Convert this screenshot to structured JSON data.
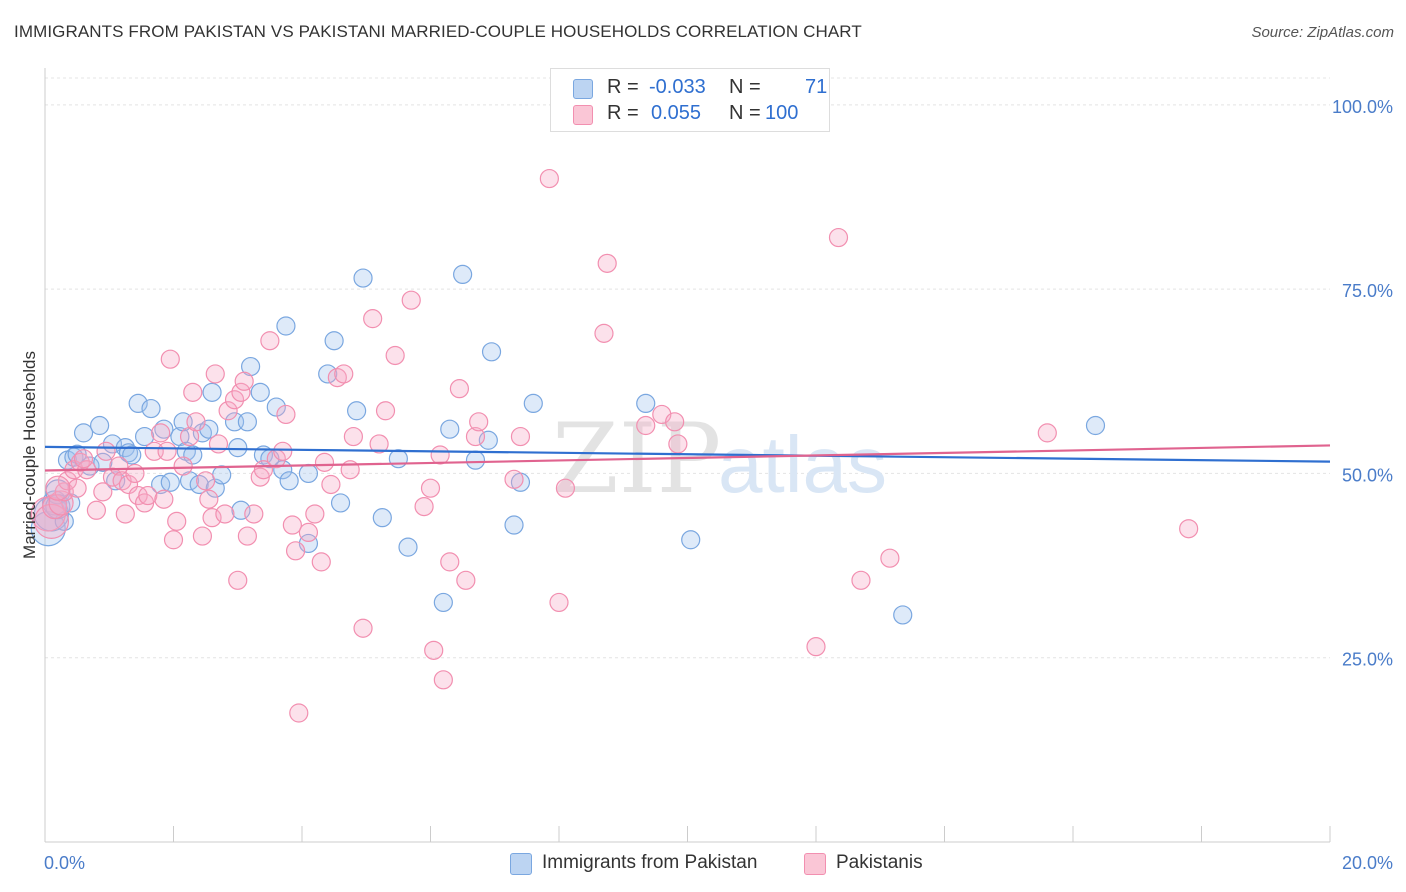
{
  "header": {
    "title": "IMMIGRANTS FROM PAKISTAN VS PAKISTANI MARRIED-COUPLE HOUSEHOLDS CORRELATION CHART",
    "source": "Source: ZipAtlas.com"
  },
  "watermark": {
    "zip": "ZIP",
    "atlas": "atlas"
  },
  "legend": {
    "rows": [
      {
        "r_label": "R =",
        "r_value": "-0.033",
        "n_label": "N =",
        "n_value": "71"
      },
      {
        "r_label": "R =",
        "r_value": "0.055",
        "n_label": "N =",
        "n_value": "100"
      }
    ]
  },
  "chart_data": {
    "type": "scatter",
    "title": "IMMIGRANTS FROM PAKISTAN VS PAKISTANI MARRIED-COUPLE HOUSEHOLDS CORRELATION CHART",
    "xlabel": "",
    "ylabel": "Married-couple Households",
    "xlim": [
      0,
      20
    ],
    "ylim": [
      0,
      105
    ],
    "x_tick_labels": [
      "0.0%",
      "20.0%"
    ],
    "y_ticks": [
      25,
      50,
      75,
      100
    ],
    "y_tick_labels": [
      "25.0%",
      "50.0%",
      "75.0%",
      "100.0%"
    ],
    "grid": true,
    "legend_position": "top-center",
    "series": [
      {
        "name": "Immigrants from Pakistan",
        "color": "#7aa7e0",
        "trend": {
          "x": [
            0,
            20
          ],
          "y": [
            53.6,
            51.6
          ]
        },
        "points": [
          [
            0.05,
            42.5
          ],
          [
            0.1,
            44.5
          ],
          [
            0.15,
            46
          ],
          [
            0.2,
            47.5
          ],
          [
            0.3,
            43.5
          ],
          [
            0.35,
            51.8
          ],
          [
            0.45,
            52.2
          ],
          [
            0.5,
            52.6
          ],
          [
            0.6,
            55.5
          ],
          [
            0.7,
            51
          ],
          [
            0.85,
            56.5
          ],
          [
            0.9,
            51.5
          ],
          [
            1.05,
            54
          ],
          [
            1.1,
            49
          ],
          [
            1.25,
            53.5
          ],
          [
            1.3,
            52.8
          ],
          [
            1.45,
            59.5
          ],
          [
            1.55,
            55
          ],
          [
            1.65,
            58.8
          ],
          [
            1.8,
            48.5
          ],
          [
            1.85,
            56
          ],
          [
            1.95,
            48.8
          ],
          [
            2.1,
            55
          ],
          [
            2.15,
            57
          ],
          [
            2.2,
            53
          ],
          [
            2.25,
            49
          ],
          [
            2.4,
            48.5
          ],
          [
            2.45,
            55.5
          ],
          [
            2.55,
            56
          ],
          [
            2.6,
            61
          ],
          [
            2.65,
            48
          ],
          [
            2.75,
            49.8
          ],
          [
            2.95,
            57
          ],
          [
            3.0,
            53.5
          ],
          [
            3.05,
            45
          ],
          [
            3.15,
            57
          ],
          [
            3.2,
            64.5
          ],
          [
            3.35,
            61
          ],
          [
            3.4,
            52.5
          ],
          [
            3.5,
            52
          ],
          [
            3.6,
            59
          ],
          [
            3.7,
            50.5
          ],
          [
            3.75,
            70
          ],
          [
            3.8,
            49
          ],
          [
            4.1,
            50
          ],
          [
            4.1,
            40.5
          ],
          [
            4.4,
            63.5
          ],
          [
            4.5,
            68
          ],
          [
            4.6,
            46
          ],
          [
            4.85,
            58.5
          ],
          [
            4.95,
            76.5
          ],
          [
            5.25,
            44
          ],
          [
            5.5,
            52
          ],
          [
            5.65,
            40
          ],
          [
            6.2,
            32.5
          ],
          [
            6.3,
            56
          ],
          [
            6.5,
            77
          ],
          [
            6.7,
            51.8
          ],
          [
            6.9,
            54.5
          ],
          [
            6.95,
            66.5
          ],
          [
            7.3,
            43
          ],
          [
            7.4,
            48.8
          ],
          [
            7.6,
            59.5
          ],
          [
            9.35,
            59.5
          ],
          [
            10.05,
            41
          ],
          [
            13.35,
            30.8
          ],
          [
            16.35,
            56.5
          ],
          [
            0.2,
            45.5
          ],
          [
            0.4,
            46
          ],
          [
            1.35,
            52.5
          ],
          [
            2.3,
            52.5
          ]
        ]
      },
      {
        "name": "Pakistanis",
        "color": "#f28fb0",
        "trend": {
          "x": [
            0,
            20
          ],
          "y": [
            50.4,
            53.8
          ]
        },
        "points": [
          [
            0.05,
            44.5
          ],
          [
            0.1,
            43.5
          ],
          [
            0.15,
            45.5
          ],
          [
            0.25,
            46
          ],
          [
            0.3,
            47.5
          ],
          [
            0.35,
            49
          ],
          [
            0.45,
            50.5
          ],
          [
            0.5,
            48
          ],
          [
            0.55,
            51.5
          ],
          [
            0.65,
            50.5
          ],
          [
            0.8,
            45
          ],
          [
            0.9,
            47.5
          ],
          [
            0.95,
            53
          ],
          [
            1.05,
            49.5
          ],
          [
            1.15,
            51
          ],
          [
            1.2,
            49
          ],
          [
            1.3,
            48.5
          ],
          [
            1.4,
            50
          ],
          [
            1.45,
            47
          ],
          [
            1.55,
            46
          ],
          [
            1.6,
            47
          ],
          [
            1.7,
            53
          ],
          [
            1.8,
            55.5
          ],
          [
            1.85,
            46.5
          ],
          [
            1.9,
            53
          ],
          [
            1.95,
            65.5
          ],
          [
            2.0,
            41
          ],
          [
            2.05,
            43.5
          ],
          [
            2.15,
            51
          ],
          [
            2.25,
            55
          ],
          [
            2.3,
            61
          ],
          [
            2.35,
            57
          ],
          [
            2.45,
            41.5
          ],
          [
            2.5,
            49
          ],
          [
            2.6,
            44
          ],
          [
            2.65,
            63.5
          ],
          [
            2.7,
            54
          ],
          [
            2.8,
            44.5
          ],
          [
            2.85,
            58.5
          ],
          [
            2.95,
            60
          ],
          [
            3.0,
            35.5
          ],
          [
            3.05,
            61
          ],
          [
            3.1,
            62.5
          ],
          [
            3.15,
            41.5
          ],
          [
            3.25,
            44.5
          ],
          [
            3.35,
            49.5
          ],
          [
            3.4,
            50.5
          ],
          [
            3.5,
            68
          ],
          [
            3.6,
            52
          ],
          [
            3.7,
            53
          ],
          [
            3.75,
            58
          ],
          [
            3.85,
            43
          ],
          [
            3.9,
            39.5
          ],
          [
            3.95,
            17.5
          ],
          [
            4.1,
            42
          ],
          [
            4.2,
            44.5
          ],
          [
            4.3,
            38
          ],
          [
            4.35,
            51.5
          ],
          [
            4.45,
            48.5
          ],
          [
            4.55,
            63
          ],
          [
            4.65,
            63.5
          ],
          [
            4.8,
            55
          ],
          [
            4.95,
            29
          ],
          [
            5.1,
            71
          ],
          [
            5.2,
            54
          ],
          [
            5.45,
            66
          ],
          [
            5.7,
            73.5
          ],
          [
            5.9,
            45.5
          ],
          [
            6.05,
            26
          ],
          [
            6.15,
            52.5
          ],
          [
            6.2,
            22
          ],
          [
            6.3,
            38
          ],
          [
            6.45,
            61.5
          ],
          [
            6.55,
            35.5
          ],
          [
            6.7,
            55
          ],
          [
            6.75,
            57
          ],
          [
            7.3,
            49.2
          ],
          [
            7.4,
            55
          ],
          [
            7.85,
            90
          ],
          [
            8.0,
            32.5
          ],
          [
            8.1,
            48
          ],
          [
            8.7,
            69
          ],
          [
            8.75,
            78.5
          ],
          [
            9.35,
            56.5
          ],
          [
            9.6,
            58
          ],
          [
            9.8,
            57
          ],
          [
            9.85,
            54
          ],
          [
            12.0,
            26.5
          ],
          [
            12.35,
            82
          ],
          [
            12.7,
            35.5
          ],
          [
            13.15,
            38.5
          ],
          [
            15.6,
            55.5
          ],
          [
            17.8,
            42.5
          ],
          [
            0.2,
            48
          ],
          [
            0.6,
            52
          ],
          [
            1.25,
            44.5
          ],
          [
            2.55,
            46.5
          ],
          [
            4.75,
            50.5
          ],
          [
            5.3,
            58.5
          ],
          [
            6.0,
            48
          ]
        ]
      }
    ]
  }
}
